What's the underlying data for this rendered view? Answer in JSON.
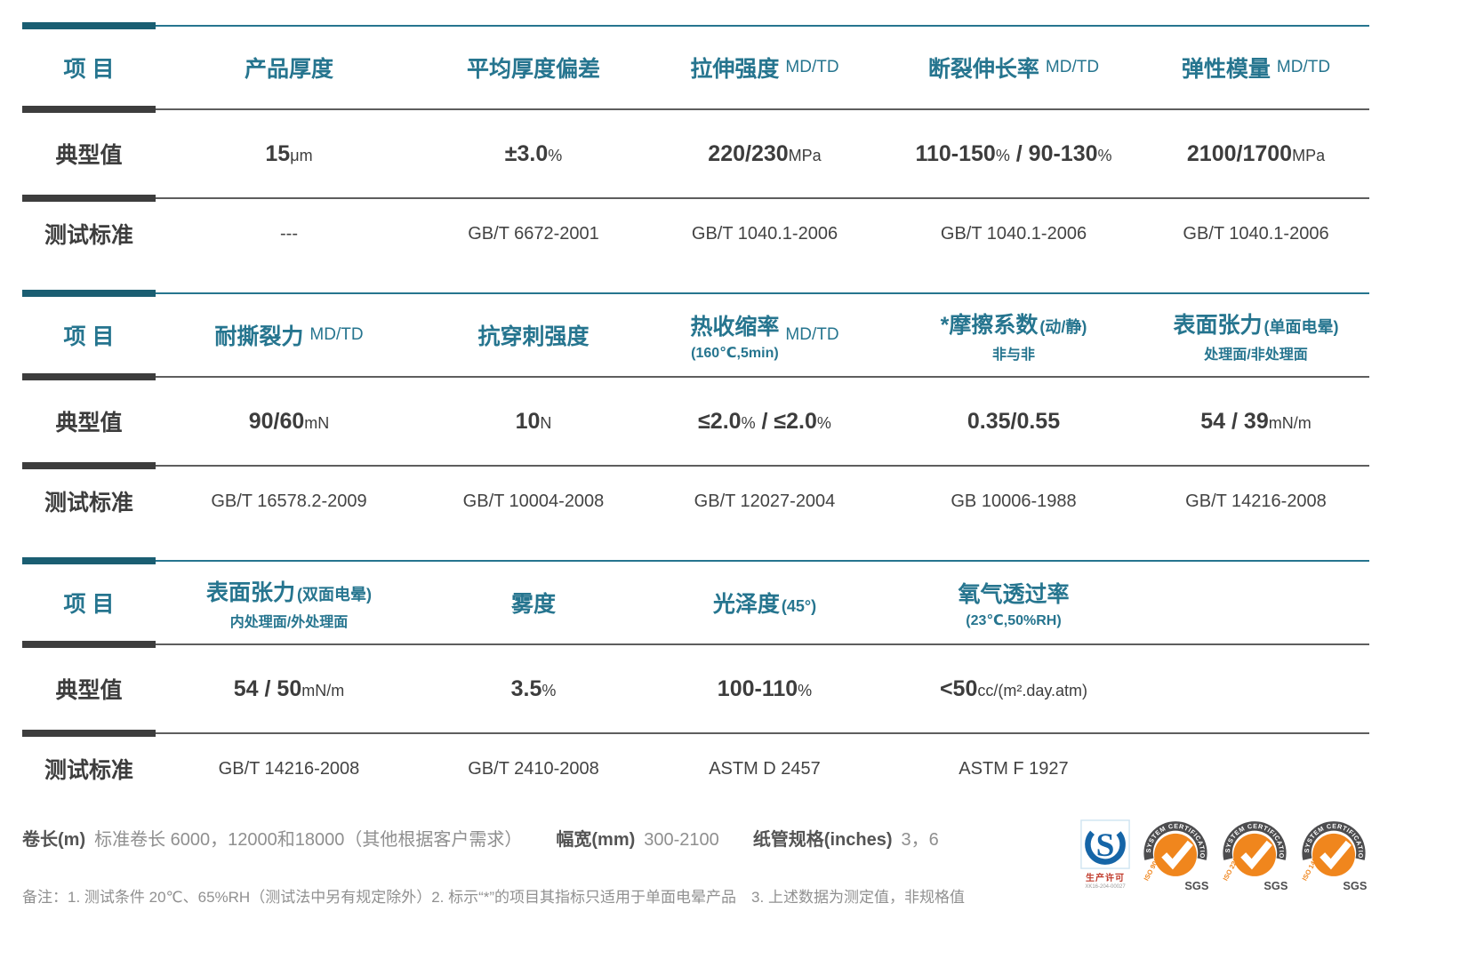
{
  "row_labels": {
    "item": "项 目",
    "typical": "典型值",
    "standard": "测试标准"
  },
  "tables": [
    {
      "columns": [
        {
          "title": "产品厚度",
          "value": [
            {
              "t": "15",
              "b": true
            },
            {
              "t": "μm",
              "b": false
            }
          ],
          "standard": "---"
        },
        {
          "title": "平均厚度偏差",
          "value": [
            {
              "t": "±3.0",
              "b": true
            },
            {
              "t": "%",
              "b": false
            }
          ],
          "standard": "GB/T 6672-2001"
        },
        {
          "title": "拉伸强度",
          "suffix": "MD/TD",
          "value": [
            {
              "t": "220/230",
              "b": true
            },
            {
              "t": "MPa",
              "b": false
            }
          ],
          "standard": "GB/T 1040.1-2006"
        },
        {
          "title": "断裂伸长率",
          "suffix": "MD/TD",
          "value": [
            {
              "t": "110-150",
              "b": true
            },
            {
              "t": "%",
              "b": false
            },
            {
              "t": " / ",
              "b": true
            },
            {
              "t": "90-130",
              "b": true
            },
            {
              "t": "%",
              "b": false
            }
          ],
          "standard": "GB/T 1040.1-2006"
        },
        {
          "title": "弹性模量",
          "suffix": "MD/TD",
          "value": [
            {
              "t": "2100/1700",
              "b": true
            },
            {
              "t": "MPa",
              "b": false
            }
          ],
          "standard": "GB/T 1040.1-2006"
        }
      ]
    },
    {
      "columns": [
        {
          "title": "耐撕裂力",
          "suffix": "MD/TD",
          "value": [
            {
              "t": "90/60",
              "b": true
            },
            {
              "t": "mN",
              "b": false
            }
          ],
          "standard": "GB/T 16578.2-2009"
        },
        {
          "title": "抗穿刺强度",
          "value": [
            {
              "t": "10",
              "b": true
            },
            {
              "t": "N",
              "b": false
            }
          ],
          "standard": "GB/T 10004-2008"
        },
        {
          "title": "热收缩率",
          "sub": "(160℃,5min)",
          "suffix": "MD/TD",
          "value": [
            {
              "t": "≤2.0",
              "b": true
            },
            {
              "t": "%",
              "b": false
            },
            {
              "t": " / ",
              "b": true
            },
            {
              "t": "≤2.0",
              "b": true
            },
            {
              "t": "%",
              "b": false
            }
          ],
          "standard": "GB/T 12027-2004"
        },
        {
          "title": "*摩擦系数",
          "paren": "(动/静)",
          "sub": "非与非",
          "value": [
            {
              "t": "0.35/0.55",
              "b": true
            }
          ],
          "standard": "GB 10006-1988"
        },
        {
          "title": "表面张力",
          "paren": "(单面电晕)",
          "sub": "处理面/非处理面",
          "value": [
            {
              "t": "54 / 39",
              "b": true
            },
            {
              "t": "mN/m",
              "b": false
            }
          ],
          "standard": "GB/T 14216-2008"
        }
      ]
    },
    {
      "columns": [
        {
          "title": "表面张力",
          "paren": "(双面电晕)",
          "sub": "内处理面/外处理面",
          "value": [
            {
              "t": "54 / 50",
              "b": true
            },
            {
              "t": "mN/m",
              "b": false
            }
          ],
          "standard": "GB/T 14216-2008"
        },
        {
          "title": "雾度",
          "value": [
            {
              "t": "3.5",
              "b": true
            },
            {
              "t": "%",
              "b": false
            }
          ],
          "standard": "GB/T 2410-2008"
        },
        {
          "title": "光泽度",
          "paren": "(45°)",
          "value": [
            {
              "t": "100-110",
              "b": true
            },
            {
              "t": "%",
              "b": false
            }
          ],
          "standard": "ASTM D 2457"
        },
        {
          "title": "氧气透过率",
          "sub": "(23℃,50%RH)",
          "value": [
            {
              "t": "<50",
              "b": true
            },
            {
              "t": "cc/(m².day.atm)",
              "b": false
            }
          ],
          "standard": "ASTM F 1927"
        }
      ]
    }
  ],
  "footer": {
    "items": [
      {
        "label": "卷长(m)",
        "text": "标准卷长 6000，12000和18000（其他根据客户需求）"
      },
      {
        "label": "幅宽(mm)",
        "text": "300-2100"
      },
      {
        "label": "纸管规格(inches)",
        "text": "3，6"
      }
    ],
    "note": "备注：1. 测试条件 20℃、65%RH（测试法中另有规定除外）2. 标示“*”的项目其指标只适用于单面电晕产品　3. 上述数据为测定值，非规格值"
  },
  "badges": {
    "qs": {
      "letter": "S",
      "caption": "生产许可",
      "code": "XK16-204-00027"
    },
    "sgs": {
      "arc_text": "SYSTEM CERTIFICATION",
      "brand": "SGS",
      "items": [
        "ISO 9001",
        "ISO 22000",
        "ISO 14001"
      ]
    }
  },
  "theme": {
    "teal": "#26758f",
    "teal_bar": "#1a5e72",
    "dark": "#3d3d3d",
    "orange": "#f0861d",
    "badge_gray": "#4d4d4f",
    "qs_blue": "#1565a7",
    "red": "#c03a2b"
  }
}
